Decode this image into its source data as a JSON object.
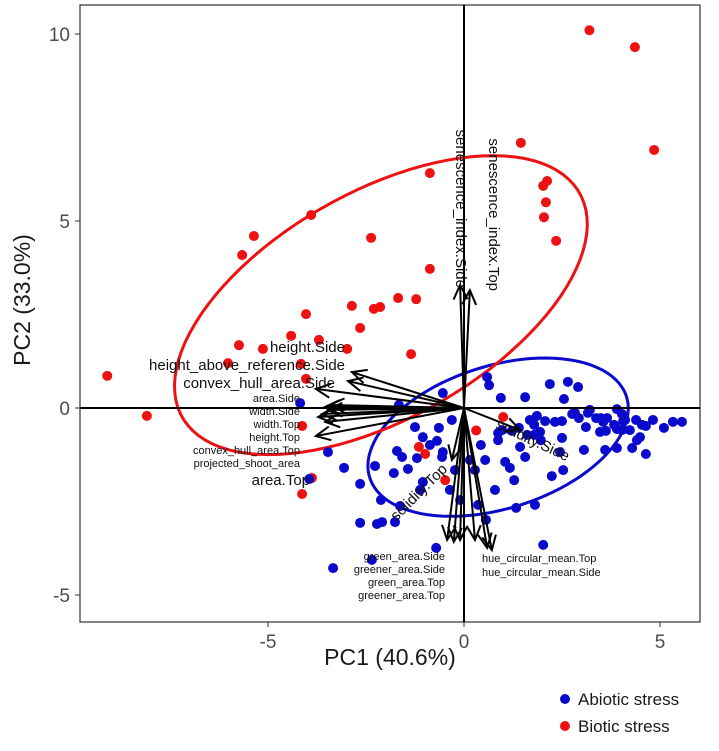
{
  "chart_data": {
    "type": "scatter",
    "subtype": "pca-biplot",
    "xlabel": "PC1 (40.6%)",
    "ylabel": "PC2 (33.0%)",
    "xlim": [
      -9.8,
      6.0
    ],
    "ylim": [
      -5.7,
      10.8
    ],
    "xticks": [
      -5,
      0,
      5
    ],
    "yticks": [
      -5,
      0,
      5,
      10
    ],
    "grid": false,
    "legend": {
      "placement": "bottom-right",
      "entries": [
        "Abiotic stress",
        "Biotic stress"
      ]
    },
    "colors": {
      "Abiotic stress": "#0A0ACC",
      "Biotic stress": "#EE1111"
    },
    "series": [
      {
        "name": "Abiotic stress",
        "points": [
          [
            0.59,
            0.83
          ],
          [
            0.64,
            0.61
          ],
          [
            0.94,
            0.27
          ],
          [
            1.56,
            0.29
          ],
          [
            2.19,
            0.64
          ],
          [
            2.65,
            0.7
          ],
          [
            2.91,
            0.56
          ],
          [
            2.55,
            0.24
          ],
          [
            2.76,
            -0.16
          ],
          [
            3.21,
            -0.05
          ],
          [
            3.49,
            -0.27
          ],
          [
            2.07,
            -0.35
          ],
          [
            2.32,
            -0.37
          ],
          [
            2.5,
            -0.35
          ],
          [
            2.83,
            -0.13
          ],
          [
            2.93,
            -0.27
          ],
          [
            3.16,
            -0.13
          ],
          [
            3.37,
            -0.27
          ],
          [
            3.55,
            -0.37
          ],
          [
            3.65,
            -0.27
          ],
          [
            3.9,
            -0.03
          ],
          [
            4.03,
            -0.16
          ],
          [
            4.06,
            -0.35
          ],
          [
            4.03,
            -0.59
          ],
          [
            4.39,
            -0.32
          ],
          [
            4.54,
            -0.45
          ],
          [
            4.82,
            -0.32
          ],
          [
            5.33,
            -0.37
          ],
          [
            4.23,
            -0.59
          ],
          [
            4.49,
            -0.78
          ],
          [
            4.64,
            -0.48
          ],
          [
            0.97,
            -0.59
          ],
          [
            0.87,
            -0.67
          ],
          [
            1.4,
            -0.53
          ],
          [
            1.22,
            -0.61
          ],
          [
            0.87,
            -0.86
          ],
          [
            1.61,
            -0.72
          ],
          [
            1.79,
            -0.72
          ],
          [
            1.96,
            -0.86
          ],
          [
            1.43,
            -1.04
          ],
          [
            1.94,
            -0.64
          ],
          [
            3.47,
            -0.64
          ],
          [
            3.62,
            -0.61
          ],
          [
            3.9,
            -0.56
          ],
          [
            4.41,
            -0.86
          ],
          [
            4.64,
            -1.23
          ],
          [
            4.29,
            -1.07
          ],
          [
            5.1,
            -0.53
          ],
          [
            5.56,
            -0.37
          ],
          [
            2.45,
            -1.18
          ],
          [
            3.6,
            -1.12
          ],
          [
            3.9,
            -1.07
          ],
          [
            1.56,
            -1.31
          ],
          [
            1.79,
            -0.45
          ],
          [
            1.86,
            -0.21
          ],
          [
            1.68,
            -0.32
          ],
          [
            3.11,
            -0.51
          ],
          [
            2.5,
            -0.8
          ],
          [
            3.83,
            -0.45
          ],
          [
            4.11,
            -0.32
          ],
          [
            -0.54,
            0.4
          ],
          [
            -4.18,
            0.13
          ],
          [
            -1.66,
            0.08
          ],
          [
            -1.25,
            -0.51
          ],
          [
            -0.64,
            -0.53
          ],
          [
            -1.05,
            -0.78
          ],
          [
            -0.87,
            -0.99
          ],
          [
            -0.69,
            -0.88
          ],
          [
            -3.47,
            -1.18
          ],
          [
            -1.71,
            -1.15
          ],
          [
            -1.58,
            -1.31
          ],
          [
            -1.2,
            -1.34
          ],
          [
            -0.56,
            -1.31
          ],
          [
            -0.54,
            -1.18
          ],
          [
            -3.06,
            -1.6
          ],
          [
            -1.79,
            -1.74
          ],
          [
            -2.27,
            -1.55
          ],
          [
            -3.95,
            -1.9
          ],
          [
            -1.05,
            -1.98
          ],
          [
            -2.65,
            -2.03
          ],
          [
            -1.43,
            -1.63
          ],
          [
            -1.12,
            -2.19
          ],
          [
            -1.63,
            -2.62
          ],
          [
            -2.12,
            -2.46
          ],
          [
            -2.65,
            -3.07
          ],
          [
            -2.09,
            -3.05
          ],
          [
            -1.76,
            -3.05
          ],
          [
            -2.22,
            -3.1
          ],
          [
            -2.35,
            -4.06
          ],
          [
            -3.34,
            -4.28
          ],
          [
            -0.71,
            -3.74
          ],
          [
            0.15,
            -1.39
          ],
          [
            0.28,
            -1.66
          ],
          [
            -0.36,
            -2.19
          ],
          [
            -0.23,
            -1.66
          ],
          [
            -0.1,
            -2.46
          ],
          [
            0.36,
            -2.59
          ],
          [
            -0.31,
            -0.32
          ],
          [
            0.43,
            -0.99
          ],
          [
            0.54,
            -1.39
          ],
          [
            0.79,
            -2.19
          ],
          [
            1.05,
            -1.44
          ],
          [
            1.28,
            -1.93
          ],
          [
            1.33,
            -2.67
          ],
          [
            0.56,
            -2.99
          ],
          [
            1.17,
            -1.6
          ],
          [
            2.02,
            -3.66
          ],
          [
            1.81,
            -2.59
          ],
          [
            2.24,
            -1.82
          ],
          [
            2.53,
            -1.66
          ],
          [
            3.06,
            -1.12
          ]
        ],
        "ellipse": {
          "center": [
            0.87,
            -0.78
          ],
          "semi_major": 3.45,
          "semi_minor": 1.9,
          "angle_deg": 18.9
        }
      },
      {
        "name": "Biotic stress",
        "points": [
          [
            3.2,
            10.1
          ],
          [
            4.36,
            9.65
          ],
          [
            4.85,
            6.9
          ],
          [
            1.45,
            7.09
          ],
          [
            2.12,
            6.07
          ],
          [
            2.02,
            5.94
          ],
          [
            2.09,
            5.5
          ],
          [
            2.04,
            5.1
          ],
          [
            2.35,
            4.47
          ],
          [
            -0.87,
            6.28
          ],
          [
            -3.9,
            5.16
          ],
          [
            -5.36,
            4.6
          ],
          [
            -5.66,
            4.09
          ],
          [
            -2.37,
            4.55
          ],
          [
            -0.87,
            3.72
          ],
          [
            -1.68,
            2.94
          ],
          [
            -2.86,
            2.73
          ],
          [
            -2.3,
            2.65
          ],
          [
            -2.14,
            2.7
          ],
          [
            -1.22,
            2.91
          ],
          [
            -4.03,
            2.51
          ],
          [
            -2.65,
            2.14
          ],
          [
            -4.41,
            1.93
          ],
          [
            -3.7,
            1.82
          ],
          [
            -2.98,
            1.58
          ],
          [
            -1.35,
            1.44
          ],
          [
            -5.74,
            1.68
          ],
          [
            -5.13,
            1.58
          ],
          [
            -6.02,
            1.2
          ],
          [
            -4.16,
            1.18
          ],
          [
            -4.03,
            0.78
          ],
          [
            -9.1,
            0.86
          ],
          [
            -8.09,
            -0.21
          ],
          [
            -4.13,
            -0.48
          ],
          [
            -3.88,
            -1.87
          ],
          [
            -4.13,
            -2.3
          ],
          [
            -1.15,
            -1.04
          ],
          [
            -0.99,
            -1.23
          ],
          [
            -0.48,
            -1.93
          ],
          [
            1.0,
            -0.24
          ],
          [
            0.31,
            -0.6
          ]
        ],
        "ellipse": {
          "center": [
            -2.12,
            2.75
          ],
          "semi_major": 5.89,
          "semi_minor": 3.0,
          "angle_deg": 31.4
        }
      }
    ],
    "loadings": [
      {
        "name": "senescence_index.Side",
        "x": -0.1,
        "y": 3.29
      },
      {
        "name": "senescence_index.Top",
        "x": 0.15,
        "y": 3.15
      },
      {
        "name": "height_above_reference.Side",
        "x": -2.96,
        "y": 0.72
      },
      {
        "name": "height.Side",
        "x": -2.86,
        "y": 0.96
      },
      {
        "name": "convex_hull_area.Side",
        "x": -3.78,
        "y": 0.51
      },
      {
        "name": "area.Side",
        "x": -3.42,
        "y": 0.08
      },
      {
        "name": "width.Side",
        "x": -3.47,
        "y": -0.05
      },
      {
        "name": "width.Top",
        "x": -3.54,
        "y": 0.03
      },
      {
        "name": "height.Top",
        "x": -3.62,
        "y": -0.16
      },
      {
        "name": "convex_hull_area.Top",
        "x": -3.72,
        "y": -0.24
      },
      {
        "name": "projected_shoot_area",
        "x": -3.54,
        "y": -0.37
      },
      {
        "name": "area.Top",
        "x": -3.78,
        "y": -0.75
      },
      {
        "name": "solidity.Side",
        "x": 1.43,
        "y": -0.59
      },
      {
        "name": "solidity.Top",
        "x": -0.31,
        "y": -1.39
      },
      {
        "name": "green_area.Side",
        "x": -0.43,
        "y": -3.53
      },
      {
        "name": "greener_area.Side",
        "x": -0.26,
        "y": -3.58
      },
      {
        "name": "green_area.Top",
        "x": -0.1,
        "y": -3.53
      },
      {
        "name": "greener_area.Top",
        "x": 0.28,
        "y": -3.53
      },
      {
        "name": "hue_circular_mean.Top",
        "x": 0.59,
        "y": -3.74
      },
      {
        "name": "hue_circular_mean.Side",
        "x": 0.71,
        "y": -3.8
      }
    ]
  }
}
